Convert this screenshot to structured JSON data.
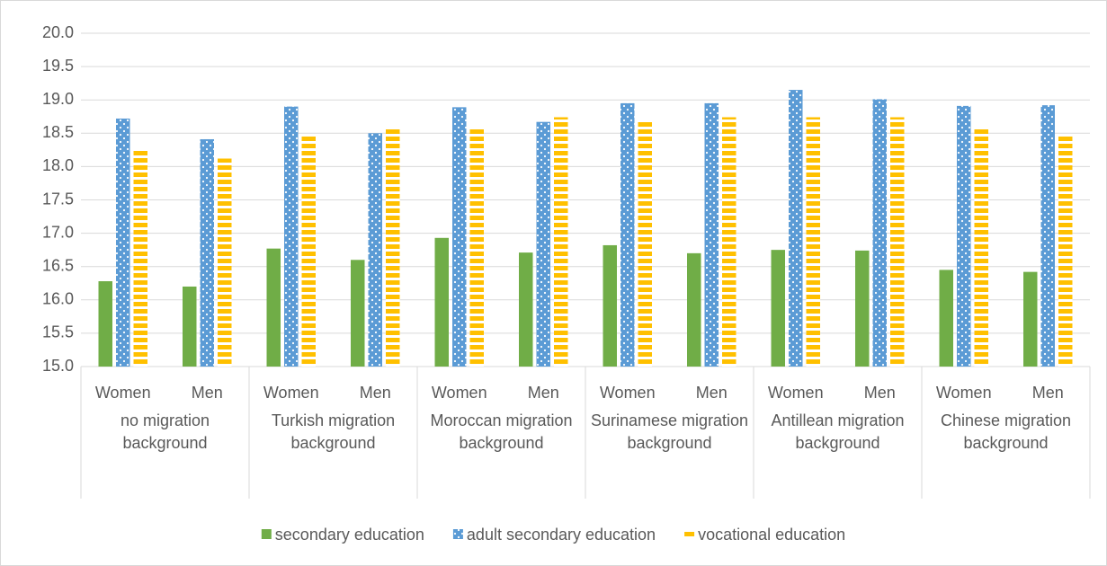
{
  "chart_data": {
    "type": "bar",
    "categories": [
      "Women",
      "Men",
      "Women",
      "Men",
      "Women",
      "Men",
      "Women",
      "Men",
      "Women",
      "Men",
      "Women",
      "Men"
    ],
    "groups": [
      "no migration background",
      "Turkish migration background",
      "Moroccan migration background",
      "Surinamese migration background",
      "Antillean migration background",
      "Chinese migration background"
    ],
    "series": [
      {
        "name": "secondary education",
        "color": "#70ad47",
        "pattern": "solid",
        "values": [
          16.28,
          16.2,
          16.77,
          16.6,
          16.93,
          16.71,
          16.82,
          16.7,
          16.75,
          16.74,
          16.45,
          16.42
        ]
      },
      {
        "name": "adult secondary education",
        "color": "#5b9bd5",
        "pattern": "dots",
        "values": [
          18.72,
          18.41,
          18.9,
          18.5,
          18.89,
          18.67,
          18.95,
          18.95,
          19.15,
          19.01,
          18.91,
          18.92
        ]
      },
      {
        "name": "vocational education",
        "color": "#ffc000",
        "pattern": "stripes",
        "values": [
          18.26,
          18.12,
          18.45,
          18.56,
          18.59,
          18.74,
          18.67,
          18.74,
          18.74,
          18.74,
          18.59,
          18.45
        ]
      }
    ],
    "ylim": [
      15,
      20
    ],
    "yticks": [
      {
        "value": 15,
        "label": "15.0"
      },
      {
        "value": 15.5,
        "label": "15.5"
      },
      {
        "value": 16,
        "label": "16.0"
      },
      {
        "value": 16.5,
        "label": "16.5"
      },
      {
        "value": 17,
        "label": "17.0"
      },
      {
        "value": 17.5,
        "label": "17.5"
      },
      {
        "value": 18,
        "label": "18.0"
      },
      {
        "value": 18.5,
        "label": "18.5"
      },
      {
        "value": 19,
        "label": "19.0"
      },
      {
        "value": 19.5,
        "label": "19.5"
      },
      {
        "value": 20,
        "label": "20.0"
      }
    ],
    "grid": true,
    "legend": "bottom"
  }
}
